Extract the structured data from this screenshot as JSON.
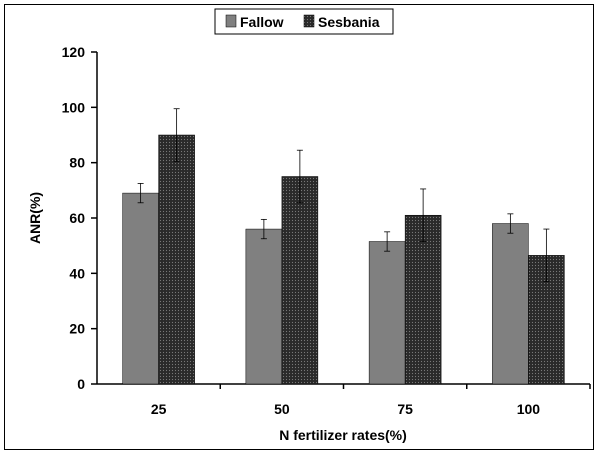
{
  "chart_data": {
    "type": "bar",
    "title": "",
    "xlabel": "N fertilizer rates(%)",
    "ylabel": "ANR(%)",
    "ylim": [
      0,
      120
    ],
    "yticks": [
      0,
      20,
      40,
      60,
      80,
      100,
      120
    ],
    "categories": [
      "25",
      "50",
      "75",
      "100"
    ],
    "series": [
      {
        "name": "Fallow",
        "values": [
          69,
          56,
          51.5,
          58
        ],
        "errors": [
          3.5,
          3.5,
          3.5,
          3.5
        ],
        "color": "#808080"
      },
      {
        "name": "Sesbania",
        "values": [
          90,
          75,
          61,
          46.5
        ],
        "errors": [
          9.5,
          9.5,
          9.5,
          9.5
        ],
        "color": "#333333"
      }
    ],
    "legend_position": "top",
    "grid": false
  }
}
